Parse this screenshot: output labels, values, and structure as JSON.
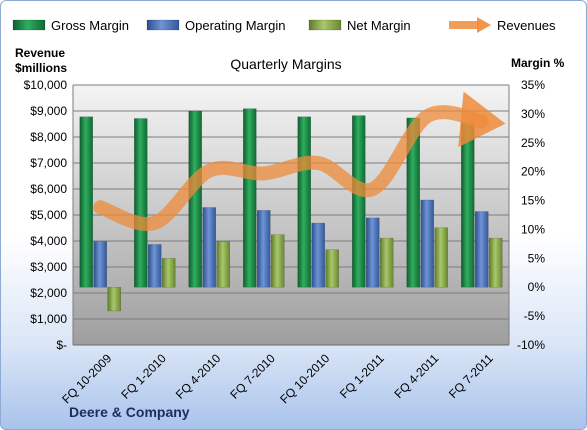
{
  "chart_data": {
    "type": "bar",
    "title": "Quarterly Margins",
    "company": "Deere & Company",
    "left_axis_label": [
      "Revenue",
      "$millions"
    ],
    "right_axis_label": "Margin %",
    "categories": [
      "FQ 10-2009",
      "FQ 1-2010",
      "FQ 4-2010",
      "FQ 7-2010",
      "FQ 10-2010",
      "FQ 1-2011",
      "FQ 4-2011",
      "FQ 7-2011"
    ],
    "left_ylim": [
      0,
      10000
    ],
    "left_ticks": [
      0,
      1000,
      2000,
      3000,
      4000,
      5000,
      6000,
      7000,
      8000,
      9000,
      10000
    ],
    "left_tick_labels": [
      "$-",
      "$1,000",
      "$2,000",
      "$3,000",
      "$4,000",
      "$5,000",
      "$6,000",
      "$7,000",
      "$8,000",
      "$9,000",
      "$10,000"
    ],
    "right_ylim": [
      -10,
      35
    ],
    "right_ticks": [
      -10,
      -5,
      0,
      5,
      10,
      15,
      20,
      25,
      30,
      35
    ],
    "right_tick_labels": [
      "-10%",
      "-5%",
      "0%",
      "5%",
      "10%",
      "15%",
      "20%",
      "25%",
      "30%",
      "35%"
    ],
    "series": [
      {
        "name": "Gross Margin",
        "axis": "right",
        "kind": "bar",
        "color": "#1e8c4a",
        "values": [
          29.5,
          29.2,
          30.5,
          30.9,
          29.5,
          29.7,
          29.3,
          28.5
        ]
      },
      {
        "name": "Operating Margin",
        "axis": "right",
        "kind": "bar",
        "color": "#4f76c0",
        "values": [
          7.9,
          7.4,
          13.8,
          13.3,
          11.1,
          12.0,
          15.1,
          13.1
        ]
      },
      {
        "name": "Net Margin",
        "axis": "right",
        "kind": "bar",
        "color": "#8bac4c",
        "values": [
          -4.1,
          5.0,
          7.9,
          9.1,
          6.5,
          8.5,
          10.3,
          8.5
        ]
      },
      {
        "name": "Revenues",
        "axis": "left",
        "kind": "line",
        "color": "#ef8b3a",
        "values": [
          5300,
          4700,
          6700,
          6600,
          7000,
          6000,
          8800,
          8600
        ]
      }
    ],
    "grid": true,
    "legend_position": "top"
  }
}
